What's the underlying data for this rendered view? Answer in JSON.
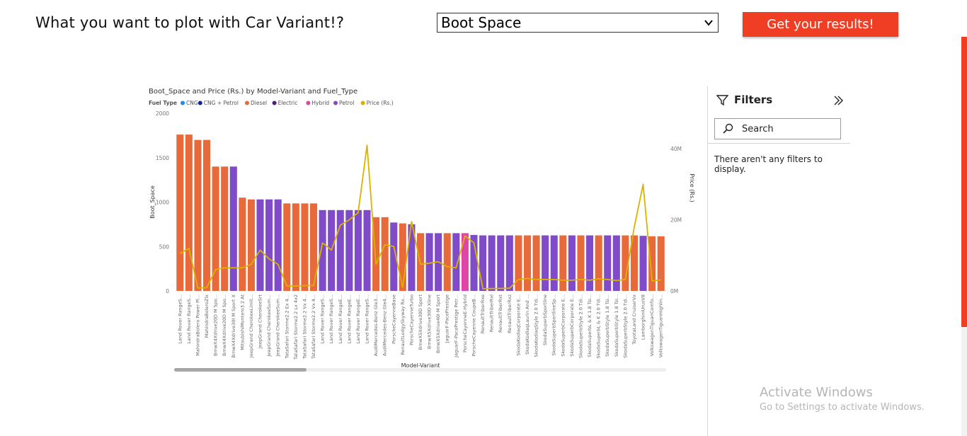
{
  "header": {
    "question": "What you want to plot with Car Variant!?",
    "select_value": "Boot Space",
    "button_label": "Get your results!"
  },
  "colors": {
    "accent": "#ef3e23",
    "diesel": "#e8693a",
    "petrol": "#7f4bc8",
    "hybrid": "#e044a7",
    "cng": "#118dff",
    "cng_petrol": "#12239e",
    "electric": "#4a1c8c",
    "price_line": "#d9b300"
  },
  "filters": {
    "title": "Filters",
    "search_placeholder": "Search",
    "empty_message": "There aren't any filters to display."
  },
  "watermark": {
    "title": "Activate Windows",
    "subtitle": "Go to Settings to activate Windows."
  },
  "chart_data": {
    "type": "bar",
    "title": "Boot_Space and Price (Rs.) by Model-Variant and Fuel_Type",
    "xlabel": "Model-Variant",
    "ylabel": "Boot_Space",
    "y2label": "Price (Rs.)",
    "ylim": [
      0,
      2000
    ],
    "y2lim": [
      0,
      50000000
    ],
    "yticks": [
      "0",
      "500",
      "1000",
      "1500",
      "2000"
    ],
    "y2ticks": [
      {
        "v": 0,
        "t": "0M"
      },
      {
        "v": 20000000,
        "t": "20M"
      },
      {
        "v": 40000000,
        "t": "40M"
      }
    ],
    "legend": {
      "title": "Fuel Type",
      "items": [
        {
          "name": "CNG",
          "color": "#118dff"
        },
        {
          "name": "CNG + Petrol",
          "color": "#12239e"
        },
        {
          "name": "Diesel",
          "color": "#e8693a"
        },
        {
          "name": "Electric",
          "color": "#4a1c8c"
        },
        {
          "name": "Hybrid",
          "color": "#e044a7"
        },
        {
          "name": "Petrol",
          "color": "#7f4bc8"
        },
        {
          "name": "Price (Rs.)",
          "color": "#d9b300"
        }
      ]
    },
    "categories": [
      "Land Rover RangeS...",
      "Land Rover RangeS...",
      "MahindraBolero Power Pl...",
      "MahindraBoleroZlx",
      "BmwX4Xdrive20D M Spo...",
      "BmwX4Xdrive20D M Spo...",
      "BmwX4Xdrive30I M Sport X",
      "MitsubishiMontero3.2 At",
      "JeepGrand CherokeeLimit...",
      "JeepGrand CherokeeSrt",
      "JeepGrand CherokeeSum...",
      "JeepGrand CherokeeSum...",
      "TataSafari Storme2.2 Ex 4...",
      "TataSafari Storme2.2 Lx 4x2",
      "TataSafari Storme2.2 Vx 4...",
      "TataSafari Storme2.2 Vx 4...",
      "Land Rover RangeS...",
      "Land Rover RangeS...",
      "Land Rover RangeE...",
      "Land Rover RangeE...",
      "Land Rover RangeE...",
      "Land Rover RangeS...",
      "AudiMercedes-Benz Gle3...",
      "AudiMercedes-Benz Gle4...",
      "PorscheCayenneBase",
      "RenaultLodgySkyway Rx...",
      "PorscheCayenneTurbo",
      "BmwX5Xdrive30D Sport",
      "BmwX5Xdrive30D Xline",
      "BmwX5Xdrive40I M Sport",
      "JaguarF-PacePrestige",
      "JaguarF-PacePrestige Petr...",
      "PorscheCayenneE-Hybrid",
      "PorscheCayenne CoupeB...",
      "RenaultTriberRxe",
      "RenaultTriberRxl",
      "RenaultTriberRxt",
      "RenaultTriberRxz",
      "SkodaKodiaqCorporate E...",
      "SkodaKodiaqLaurin And ...",
      "SkodaKodiaqStyle 2.0 Tdi...",
      "SkodaSuperbSportline",
      "SkodaSuperbSportlineSp...",
      "SkodaSuperbCorporate E...",
      "SkodaSuperbCorporate E...",
      "SkodaSuperbStyle 2.0 Tdi...",
      "SkodaSuperbL & K 1.8 Tsi...",
      "SkodaSuperbL & K 2.0 Tdi...",
      "SkodaSuperbStyle 1.8 Tsi...",
      "SkodaSuperbStyle 1.8 Tsi...",
      "SkodaSuperbStyle 2.0 Tdi...",
      "ToyotaLand CruiserVx",
      "LamborghiniUrusV8",
      "VolkswagenTiguanComfo...",
      "VolkswagenTiguanHighlin..."
    ],
    "fuel": [
      "Diesel",
      "Diesel",
      "Diesel",
      "Diesel",
      "Diesel",
      "Diesel",
      "Petrol",
      "Diesel",
      "Diesel",
      "Petrol",
      "Petrol",
      "Petrol",
      "Diesel",
      "Diesel",
      "Diesel",
      "Diesel",
      "Petrol",
      "Petrol",
      "Petrol",
      "Petrol",
      "Petrol",
      "Petrol",
      "Diesel",
      "Diesel",
      "Petrol",
      "Diesel",
      "Petrol",
      "Diesel",
      "Petrol",
      "Petrol",
      "Diesel",
      "Petrol",
      "Hybrid",
      "Petrol",
      "Petrol",
      "Petrol",
      "Petrol",
      "Petrol",
      "Diesel",
      "Diesel",
      "Diesel",
      "Petrol",
      "Petrol",
      "Diesel",
      "Petrol",
      "Diesel",
      "Petrol",
      "Diesel",
      "Petrol",
      "Petrol",
      "Diesel",
      "Diesel",
      "Petrol",
      "Diesel",
      "Diesel"
    ],
    "values": [
      1760,
      1760,
      1700,
      1700,
      1400,
      1400,
      1400,
      1050,
      1030,
      1030,
      1030,
      1030,
      985,
      985,
      985,
      985,
      910,
      910,
      910,
      910,
      910,
      910,
      830,
      830,
      770,
      760,
      750,
      650,
      650,
      650,
      650,
      650,
      650,
      630,
      625,
      625,
      625,
      625,
      625,
      625,
      625,
      625,
      625,
      625,
      625,
      625,
      625,
      625,
      625,
      625,
      625,
      625,
      620,
      615,
      615
    ],
    "price": [
      10500000,
      12000000,
      800000,
      900000,
      6000000,
      6500000,
      6500000,
      6500000,
      7500000,
      11500000,
      9000000,
      7500000,
      1400000,
      1400000,
      1500000,
      1500000,
      13500000,
      11500000,
      18500000,
      20000000,
      22000000,
      41000000,
      7500000,
      13000000,
      12500000,
      1000000,
      19500000,
      7500000,
      7800000,
      8200000,
      6800000,
      6500000,
      15500000,
      13500000,
      600000,
      650000,
      700000,
      750000,
      3200000,
      3500000,
      3200000,
      3200000,
      3200000,
      3000000,
      3000000,
      3200000,
      3000000,
      3400000,
      3200000,
      2900000,
      3200000,
      18000000,
      30000000,
      2800000,
      3100000
    ]
  }
}
